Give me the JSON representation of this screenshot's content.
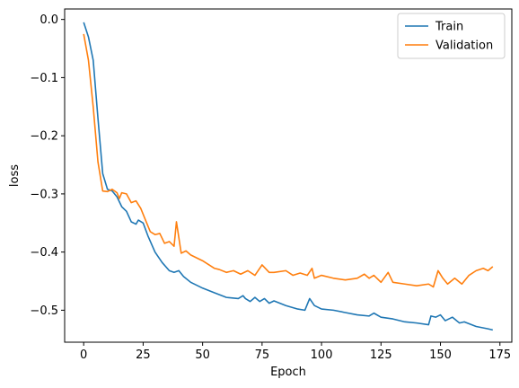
{
  "chart_data": {
    "type": "line",
    "xlabel": "Epoch",
    "ylabel": "loss",
    "xlim": [
      -8,
      180
    ],
    "ylim": [
      -0.555,
      0.018
    ],
    "xticks": [
      0,
      25,
      50,
      75,
      100,
      125,
      150,
      175
    ],
    "yticks": [
      0.0,
      -0.1,
      -0.2,
      -0.3,
      -0.4,
      -0.5
    ],
    "ytick_labels": [
      "0.0",
      "−0.1",
      "−0.2",
      "−0.3",
      "−0.4",
      "−0.5"
    ],
    "grid": false,
    "legend": "top-right",
    "series": [
      {
        "name": "Train",
        "color": "#1f77b4",
        "points": [
          [
            0,
            -0.005
          ],
          [
            2,
            -0.03
          ],
          [
            4,
            -0.07
          ],
          [
            6,
            -0.17
          ],
          [
            8,
            -0.265
          ],
          [
            10,
            -0.292
          ],
          [
            12,
            -0.295
          ],
          [
            14,
            -0.305
          ],
          [
            16,
            -0.322
          ],
          [
            18,
            -0.33
          ],
          [
            20,
            -0.348
          ],
          [
            22,
            -0.352
          ],
          [
            23,
            -0.345
          ],
          [
            25,
            -0.35
          ],
          [
            27,
            -0.372
          ],
          [
            30,
            -0.4
          ],
          [
            33,
            -0.418
          ],
          [
            36,
            -0.432
          ],
          [
            38,
            -0.435
          ],
          [
            40,
            -0.432
          ],
          [
            42,
            -0.442
          ],
          [
            45,
            -0.452
          ],
          [
            50,
            -0.462
          ],
          [
            55,
            -0.47
          ],
          [
            60,
            -0.478
          ],
          [
            65,
            -0.48
          ],
          [
            67,
            -0.475
          ],
          [
            68,
            -0.48
          ],
          [
            70,
            -0.485
          ],
          [
            72,
            -0.478
          ],
          [
            74,
            -0.485
          ],
          [
            76,
            -0.48
          ],
          [
            78,
            -0.488
          ],
          [
            80,
            -0.484
          ],
          [
            85,
            -0.492
          ],
          [
            90,
            -0.498
          ],
          [
            93,
            -0.5
          ],
          [
            95,
            -0.48
          ],
          [
            97,
            -0.492
          ],
          [
            100,
            -0.498
          ],
          [
            105,
            -0.5
          ],
          [
            110,
            -0.504
          ],
          [
            115,
            -0.508
          ],
          [
            120,
            -0.51
          ],
          [
            122,
            -0.505
          ],
          [
            125,
            -0.512
          ],
          [
            130,
            -0.515
          ],
          [
            135,
            -0.52
          ],
          [
            140,
            -0.522
          ],
          [
            145,
            -0.525
          ],
          [
            146,
            -0.51
          ],
          [
            148,
            -0.512
          ],
          [
            150,
            -0.508
          ],
          [
            152,
            -0.518
          ],
          [
            155,
            -0.512
          ],
          [
            158,
            -0.522
          ],
          [
            160,
            -0.52
          ],
          [
            165,
            -0.528
          ],
          [
            170,
            -0.532
          ],
          [
            172,
            -0.534
          ]
        ]
      },
      {
        "name": "Validation",
        "color": "#ff7f0e",
        "points": [
          [
            0,
            -0.025
          ],
          [
            2,
            -0.07
          ],
          [
            4,
            -0.15
          ],
          [
            6,
            -0.245
          ],
          [
            8,
            -0.295
          ],
          [
            10,
            -0.296
          ],
          [
            12,
            -0.292
          ],
          [
            14,
            -0.298
          ],
          [
            15,
            -0.308
          ],
          [
            16,
            -0.298
          ],
          [
            18,
            -0.3
          ],
          [
            20,
            -0.315
          ],
          [
            22,
            -0.312
          ],
          [
            24,
            -0.325
          ],
          [
            26,
            -0.345
          ],
          [
            28,
            -0.365
          ],
          [
            30,
            -0.37
          ],
          [
            32,
            -0.368
          ],
          [
            34,
            -0.385
          ],
          [
            36,
            -0.382
          ],
          [
            38,
            -0.39
          ],
          [
            39,
            -0.348
          ],
          [
            41,
            -0.402
          ],
          [
            43,
            -0.398
          ],
          [
            45,
            -0.405
          ],
          [
            50,
            -0.415
          ],
          [
            55,
            -0.428
          ],
          [
            57,
            -0.43
          ],
          [
            60,
            -0.435
          ],
          [
            63,
            -0.432
          ],
          [
            66,
            -0.438
          ],
          [
            69,
            -0.432
          ],
          [
            72,
            -0.44
          ],
          [
            75,
            -0.422
          ],
          [
            78,
            -0.435
          ],
          [
            80,
            -0.435
          ],
          [
            85,
            -0.432
          ],
          [
            88,
            -0.44
          ],
          [
            91,
            -0.436
          ],
          [
            94,
            -0.44
          ],
          [
            96,
            -0.428
          ],
          [
            97,
            -0.445
          ],
          [
            100,
            -0.44
          ],
          [
            105,
            -0.445
          ],
          [
            110,
            -0.448
          ],
          [
            115,
            -0.445
          ],
          [
            118,
            -0.438
          ],
          [
            120,
            -0.445
          ],
          [
            122,
            -0.44
          ],
          [
            125,
            -0.452
          ],
          [
            128,
            -0.435
          ],
          [
            130,
            -0.452
          ],
          [
            135,
            -0.455
          ],
          [
            140,
            -0.458
          ],
          [
            145,
            -0.455
          ],
          [
            147,
            -0.46
          ],
          [
            149,
            -0.432
          ],
          [
            151,
            -0.445
          ],
          [
            153,
            -0.455
          ],
          [
            156,
            -0.445
          ],
          [
            159,
            -0.455
          ],
          [
            162,
            -0.44
          ],
          [
            165,
            -0.432
          ],
          [
            168,
            -0.428
          ],
          [
            170,
            -0.432
          ],
          [
            172,
            -0.425
          ]
        ]
      }
    ]
  }
}
